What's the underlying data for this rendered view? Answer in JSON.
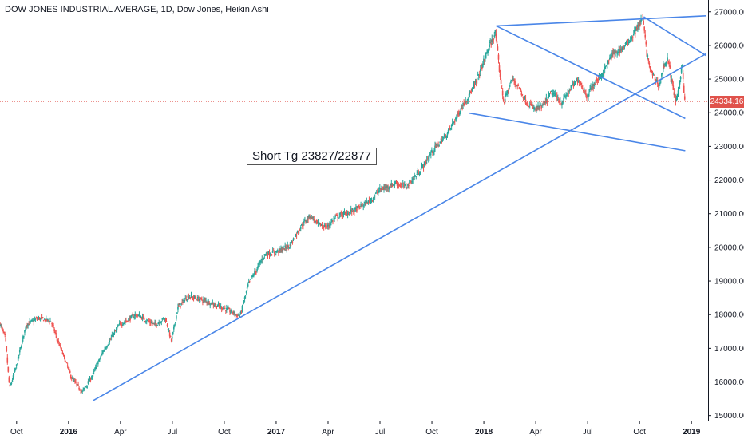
{
  "chart_data": {
    "type": "candlestick",
    "title": "DOW JONES INDUSTRIAL AVERAGE, 1D, Dow Jones, Heikin Ashi",
    "annotation": "Short Tg 23827/22877",
    "last_price_label": "24334.16",
    "last_price": 24334.16,
    "ylim": [
      14850,
      27350
    ],
    "y_ticks": [
      "15000.00",
      "16000.00",
      "17000.00",
      "18000.00",
      "19000.00",
      "20000.00",
      "21000.00",
      "22000.00",
      "23000.00",
      "24000.00",
      "25000.00",
      "26000.00",
      "27000.00"
    ],
    "y_tick_values": [
      15000,
      16000,
      17000,
      18000,
      19000,
      20000,
      21000,
      22000,
      23000,
      24000,
      25000,
      26000,
      27000
    ],
    "xlim": [
      2015.67,
      2019.08
    ],
    "x_ticks": [
      {
        "label": "Oct",
        "t": 2015.75,
        "year": false
      },
      {
        "label": "2016",
        "t": 2016.0,
        "year": true
      },
      {
        "label": "Apr",
        "t": 2016.25,
        "year": false
      },
      {
        "label": "Jul",
        "t": 2016.5,
        "year": false
      },
      {
        "label": "Oct",
        "t": 2016.75,
        "year": false
      },
      {
        "label": "2017",
        "t": 2017.0,
        "year": true
      },
      {
        "label": "Apr",
        "t": 2017.25,
        "year": false
      },
      {
        "label": "Jul",
        "t": 2017.5,
        "year": false
      },
      {
        "label": "Oct",
        "t": 2017.75,
        "year": false
      },
      {
        "label": "2018",
        "t": 2018.0,
        "year": true
      },
      {
        "label": "Apr",
        "t": 2018.25,
        "year": false
      },
      {
        "label": "Jul",
        "t": 2018.5,
        "year": false
      },
      {
        "label": "Oct",
        "t": 2018.75,
        "year": false
      },
      {
        "label": "2019",
        "t": 2019.0,
        "year": true
      }
    ],
    "price_path": [
      [
        2015.67,
        17800
      ],
      [
        2015.7,
        17300
      ],
      [
        2015.72,
        15800
      ],
      [
        2015.75,
        16400
      ],
      [
        2015.8,
        17700
      ],
      [
        2015.86,
        17900
      ],
      [
        2015.92,
        17800
      ],
      [
        2015.96,
        17100
      ],
      [
        2016.02,
        16100
      ],
      [
        2016.07,
        15700
      ],
      [
        2016.12,
        16200
      ],
      [
        2016.17,
        16900
      ],
      [
        2016.25,
        17700
      ],
      [
        2016.33,
        18000
      ],
      [
        2016.42,
        17700
      ],
      [
        2016.47,
        17900
      ],
      [
        2016.5,
        17200
      ],
      [
        2016.53,
        18200
      ],
      [
        2016.58,
        18550
      ],
      [
        2016.67,
        18400
      ],
      [
        2016.75,
        18200
      ],
      [
        2016.83,
        17950
      ],
      [
        2016.87,
        18900
      ],
      [
        2016.95,
        19800
      ],
      [
        2017.0,
        19850
      ],
      [
        2017.07,
        20050
      ],
      [
        2017.12,
        20600
      ],
      [
        2017.17,
        20950
      ],
      [
        2017.2,
        20700
      ],
      [
        2017.25,
        20600
      ],
      [
        2017.29,
        20900
      ],
      [
        2017.38,
        21100
      ],
      [
        2017.46,
        21400
      ],
      [
        2017.5,
        21700
      ],
      [
        2017.58,
        21900
      ],
      [
        2017.63,
        21800
      ],
      [
        2017.7,
        22300
      ],
      [
        2017.75,
        22800
      ],
      [
        2017.83,
        23400
      ],
      [
        2017.9,
        24200
      ],
      [
        2017.96,
        24800
      ],
      [
        2018.02,
        25800
      ],
      [
        2018.06,
        26400
      ],
      [
        2018.08,
        25200
      ],
      [
        2018.1,
        24300
      ],
      [
        2018.14,
        25000
      ],
      [
        2018.17,
        24800
      ],
      [
        2018.21,
        24300
      ],
      [
        2018.25,
        24100
      ],
      [
        2018.29,
        24200
      ],
      [
        2018.33,
        24600
      ],
      [
        2018.38,
        24300
      ],
      [
        2018.42,
        24700
      ],
      [
        2018.46,
        25000
      ],
      [
        2018.5,
        24500
      ],
      [
        2018.54,
        24900
      ],
      [
        2018.58,
        25200
      ],
      [
        2018.62,
        25700
      ],
      [
        2018.67,
        25900
      ],
      [
        2018.71,
        26200
      ],
      [
        2018.75,
        26600
      ],
      [
        2018.77,
        26800
      ],
      [
        2018.79,
        25700
      ],
      [
        2018.81,
        25200
      ],
      [
        2018.85,
        24800
      ],
      [
        2018.87,
        25400
      ],
      [
        2018.89,
        25600
      ],
      [
        2018.91,
        24900
      ],
      [
        2018.93,
        24300
      ],
      [
        2018.94,
        24600
      ],
      [
        2018.96,
        25500
      ],
      [
        2018.97,
        24334.16
      ]
    ],
    "trendlines": [
      {
        "name": "upper-resistance",
        "from": [
          2018.06,
          26580
        ],
        "to": [
          2019.07,
          26880
        ]
      },
      {
        "name": "long-term-support",
        "from": [
          2016.12,
          15450
        ],
        "to": [
          2019.07,
          25750
        ]
      },
      {
        "name": "broadening-lower",
        "from": [
          2017.93,
          23990
        ],
        "to": [
          2018.97,
          22870
        ]
      },
      {
        "name": "wedge-upper-diagonal",
        "from": [
          2018.06,
          26580
        ],
        "to": [
          2018.97,
          23830
        ]
      },
      {
        "name": "wedge-top-down",
        "from": [
          2018.77,
          26850
        ],
        "to": [
          2019.07,
          25700
        ]
      }
    ],
    "colors": {
      "up": "#26a69a",
      "down": "#ef5350",
      "trendline": "#4a86e8",
      "price_line": "#e0524b",
      "price_tag": "#e0524b",
      "axis": "#131722"
    },
    "grid": false,
    "legend": "none"
  }
}
